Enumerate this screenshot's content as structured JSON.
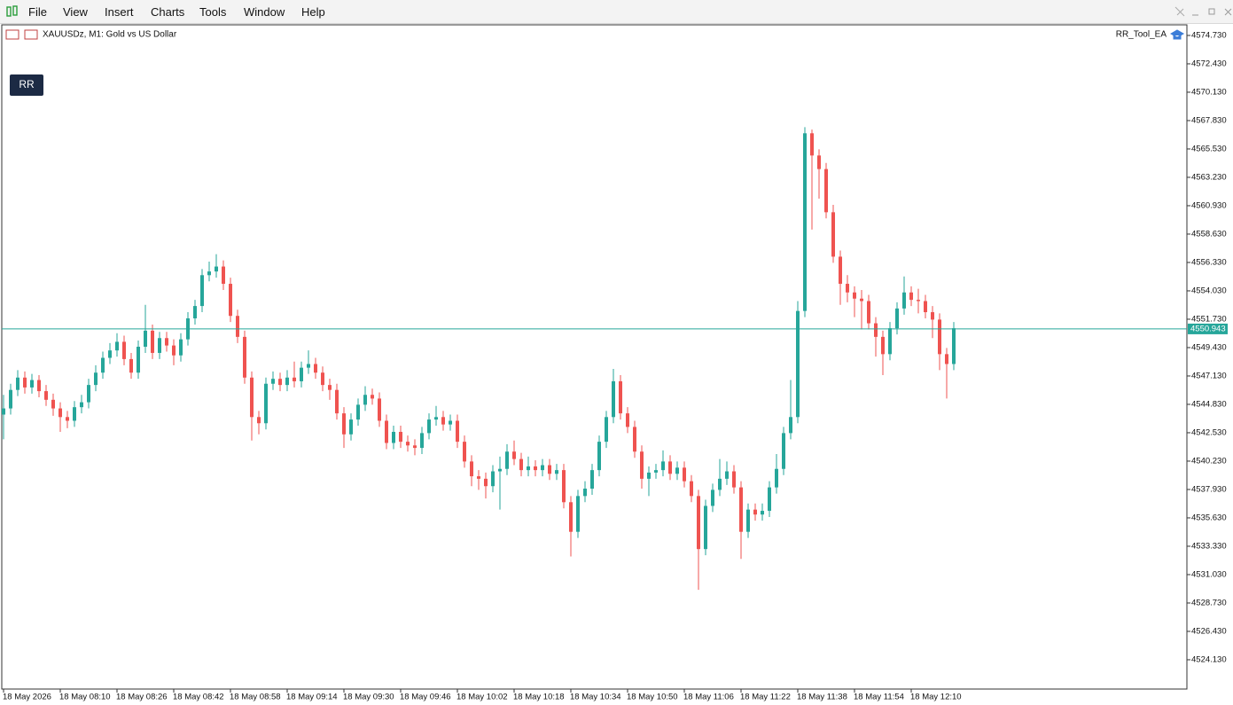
{
  "menu": {
    "items": [
      "File",
      "View",
      "Insert",
      "Charts",
      "Tools",
      "Window",
      "Help"
    ]
  },
  "chart_data": {
    "type": "candlestick",
    "title": "XAUUSDz, M1:  Gold vs US Dollar",
    "expert": "RR_Tool_EA",
    "button": "RR",
    "up_color": "#26a69a",
    "down_color": "#ef5350",
    "ylim": [
      4521.9,
      4575.59
    ],
    "yticks": [
      {
        "value": 4574.73,
        "label": "4574.730"
      },
      {
        "value": 4572.43,
        "label": "4572.430"
      },
      {
        "value": 4570.13,
        "label": "4570.130"
      },
      {
        "value": 4567.83,
        "label": "4567.830"
      },
      {
        "value": 4565.53,
        "label": "4565.530"
      },
      {
        "value": 4563.23,
        "label": "4563.230"
      },
      {
        "value": 4560.93,
        "label": "4560.930"
      },
      {
        "value": 4558.63,
        "label": "4558.630"
      },
      {
        "value": 4556.33,
        "label": "4556.330"
      },
      {
        "value": 4554.03,
        "label": "4554.030"
      },
      {
        "value": 4551.73,
        "label": "4551.730"
      },
      {
        "value": 4549.43,
        "label": "4549.430"
      },
      {
        "value": 4547.13,
        "label": "4547.130"
      },
      {
        "value": 4544.83,
        "label": "4544.830"
      },
      {
        "value": 4542.53,
        "label": "4542.530"
      },
      {
        "value": 4540.23,
        "label": "4540.230"
      },
      {
        "value": 4537.93,
        "label": "4537.930"
      },
      {
        "value": 4535.63,
        "label": "4535.630"
      },
      {
        "value": 4533.33,
        "label": "4533.330"
      },
      {
        "value": 4531.03,
        "label": "4531.030"
      },
      {
        "value": 4528.73,
        "label": "4528.730"
      },
      {
        "value": 4526.43,
        "label": "4526.430"
      },
      {
        "value": 4524.13,
        "label": "4524.130"
      }
    ],
    "current_price": 4550.943,
    "xtick_labels": [
      "18 May 2026",
      "18 May 08:10",
      "18 May 08:26",
      "18 May 08:42",
      "18 May 08:58",
      "18 May 09:14",
      "18 May 09:30",
      "18 May 09:46",
      "18 May 10:02",
      "18 May 10:18",
      "18 May 10:34",
      "18 May 10:50",
      "18 May 11:06",
      "18 May 11:22",
      "18 May 11:38",
      "18 May 11:54",
      "18 May 12:10"
    ],
    "open": [
      4544.0,
      4544.5,
      4546.0,
      4547.0,
      4546.2,
      4546.8,
      4545.9,
      4545.2,
      4544.5,
      4543.8,
      4543.5,
      4544.6,
      4545.0,
      4546.4,
      4547.4,
      4548.6,
      4549.2,
      4549.9,
      4548.5,
      4547.4,
      4549.5,
      4550.8,
      4549.0,
      4550.2,
      4549.6,
      4548.8,
      4550.1,
      4551.8,
      4552.8,
      4555.3,
      4555.6,
      4556.0,
      4554.6,
      4552.0,
      4550.3,
      4547.0,
      4543.8,
      4543.3,
      4546.5,
      4546.9,
      4546.4,
      4547.0,
      4546.7,
      4547.8,
      4548.1,
      4547.4,
      4546.4,
      4546.0,
      4544.1,
      4542.4,
      4543.6,
      4544.8,
      4545.6,
      4545.3,
      4543.5,
      4541.7,
      4542.6,
      4541.8,
      4541.5,
      4541.3,
      4542.5,
      4543.6,
      4543.8,
      4543.2,
      4543.5,
      4541.8,
      4540.2,
      4539.0,
      4538.8,
      4538.2,
      4539.4,
      4539.6,
      4541.0,
      4540.4,
      4539.5,
      4539.8,
      4539.5,
      4539.9,
      4539.2,
      4539.5,
      4536.9,
      4534.5,
      4537.4,
      4538.0,
      4539.5,
      4541.8,
      4543.8,
      4546.7,
      4544.1,
      4543.0,
      4541.0,
      4538.8,
      4539.3,
      4539.5,
      4540.2,
      4539.2,
      4539.7,
      4538.6,
      4537.4,
      4533.1,
      4536.6,
      4537.9,
      4538.8,
      4539.4,
      4538.1,
      4534.5,
      4536.3,
      4535.9,
      4536.2,
      4538.1,
      4539.6,
      4542.5,
      4543.8,
      4552.4,
      4566.8,
      4565.0,
      4563.9,
      4560.4,
      4556.8,
      4554.6,
      4553.9,
      4553.4,
      4553.2,
      4551.4,
      4550.3,
      4548.9,
      4551.0,
      4552.6,
      4553.9,
      4553.3,
      4553.2,
      4552.3,
      4551.7,
      4548.9,
      4548.1
    ],
    "high": [
      4545.6,
      4546.5,
      4547.6,
      4547.5,
      4547.3,
      4547.2,
      4546.4,
      4545.7,
      4545.0,
      4544.3,
      4545.1,
      4545.6,
      4546.9,
      4548.0,
      4549.1,
      4549.8,
      4550.6,
      4550.4,
      4549.0,
      4550.0,
      4552.9,
      4551.3,
      4550.7,
      4550.7,
      4550.1,
      4550.6,
      4552.3,
      4553.3,
      4555.8,
      4556.4,
      4557.0,
      4556.5,
      4555.1,
      4552.5,
      4550.8,
      4547.5,
      4544.3,
      4547.0,
      4547.5,
      4547.4,
      4547.6,
      4548.3,
      4548.3,
      4549.2,
      4548.6,
      4547.9,
      4546.9,
      4546.5,
      4544.6,
      4544.1,
      4545.3,
      4546.3,
      4546.1,
      4545.8,
      4544.0,
      4543.1,
      4543.1,
      4542.3,
      4542.0,
      4543.0,
      4544.1,
      4544.7,
      4544.3,
      4544.0,
      4544.0,
      4542.3,
      4540.7,
      4539.5,
      4539.3,
      4539.9,
      4540.6,
      4541.6,
      4541.9,
      4540.9,
      4540.6,
      4540.3,
      4540.4,
      4540.4,
      4540.0,
      4540.0,
      4537.4,
      4537.9,
      4538.6,
      4540.0,
      4542.3,
      4544.3,
      4547.7,
      4547.2,
      4544.6,
      4543.5,
      4541.5,
      4539.8,
      4540.0,
      4541.1,
      4540.7,
      4540.2,
      4540.2,
      4539.1,
      4537.9,
      4537.1,
      4538.4,
      4540.4,
      4540.2,
      4539.9,
      4538.6,
      4536.8,
      4536.8,
      4536.8,
      4538.6,
      4540.8,
      4543.0,
      4546.8,
      4553.2,
      4567.3,
      4567.1,
      4565.5,
      4564.4,
      4561.0,
      4557.3,
      4555.3,
      4554.4,
      4554.1,
      4553.7,
      4551.9,
      4550.8,
      4551.5,
      4553.1,
      4555.2,
      4554.4,
      4554.2,
      4553.7,
      4552.8,
      4552.2,
      4549.4,
      4551.5
    ],
    "low": [
      4542.0,
      4544.0,
      4545.5,
      4545.7,
      4545.7,
      4545.4,
      4544.7,
      4543.9,
      4542.6,
      4542.9,
      4543.0,
      4544.1,
      4544.5,
      4545.9,
      4546.9,
      4548.1,
      4548.7,
      4548.0,
      4546.9,
      4546.9,
      4549.0,
      4548.5,
      4548.5,
      4549.1,
      4548.0,
      4548.3,
      4549.6,
      4551.3,
      4552.3,
      4554.8,
      4555.1,
      4554.1,
      4551.5,
      4549.8,
      4546.5,
      4541.9,
      4542.4,
      4542.8,
      4546.0,
      4545.9,
      4545.9,
      4546.2,
      4546.2,
      4547.3,
      4546.9,
      4545.9,
      4545.2,
      4543.6,
      4541.3,
      4541.9,
      4543.1,
      4544.3,
      4544.8,
      4543.0,
      4541.2,
      4541.2,
      4541.3,
      4541.0,
      4540.7,
      4540.8,
      4542.0,
      4543.1,
      4542.7,
      4542.7,
      4541.3,
      4539.7,
      4538.2,
      4537.9,
      4537.2,
      4537.7,
      4536.3,
      4539.1,
      4539.9,
      4539.0,
      4539.0,
      4539.0,
      4539.0,
      4538.7,
      4538.7,
      4536.4,
      4532.5,
      4534.0,
      4536.9,
      4537.5,
      4539.0,
      4541.3,
      4543.3,
      4543.6,
      4542.5,
      4540.5,
      4538.0,
      4537.4,
      4538.8,
      4539.0,
      4538.7,
      4538.7,
      4538.1,
      4536.9,
      4529.8,
      4532.6,
      4536.1,
      4537.4,
      4538.3,
      4537.6,
      4532.3,
      4534.0,
      4535.4,
      4535.4,
      4535.7,
      4537.6,
      4539.1,
      4542.0,
      4543.3,
      4551.9,
      4559.0,
      4561.5,
      4559.9,
      4556.3,
      4552.9,
      4553.1,
      4551.9,
      4550.9,
      4550.9,
      4548.7,
      4547.2,
      4548.4,
      4550.5,
      4552.1,
      4552.8,
      4552.2,
      4551.8,
      4550.2,
      4547.6,
      4545.3,
      4547.6
    ],
    "close": [
      4544.5,
      4546.0,
      4547.0,
      4546.2,
      4546.8,
      4545.9,
      4545.2,
      4544.5,
      4543.8,
      4543.5,
      4544.6,
      4545.0,
      4546.4,
      4547.4,
      4548.6,
      4549.2,
      4549.9,
      4548.5,
      4547.4,
      4549.5,
      4550.8,
      4549.0,
      4550.2,
      4549.6,
      4548.8,
      4550.1,
      4551.8,
      4552.8,
      4555.3,
      4555.6,
      4556.0,
      4554.6,
      4552.0,
      4550.3,
      4547.0,
      4543.8,
      4543.3,
      4546.5,
      4546.9,
      4546.4,
      4547.0,
      4546.7,
      4547.8,
      4548.1,
      4547.4,
      4546.4,
      4546.0,
      4544.1,
      4542.4,
      4543.6,
      4544.8,
      4545.6,
      4545.3,
      4543.5,
      4541.7,
      4542.6,
      4541.8,
      4541.5,
      4541.3,
      4542.5,
      4543.6,
      4543.8,
      4543.2,
      4543.5,
      4541.8,
      4540.2,
      4539.0,
      4538.8,
      4538.2,
      4539.4,
      4539.6,
      4541.0,
      4540.4,
      4539.5,
      4539.8,
      4539.5,
      4539.9,
      4539.2,
      4539.5,
      4536.9,
      4534.5,
      4537.4,
      4538.0,
      4539.5,
      4541.8,
      4543.8,
      4546.7,
      4544.1,
      4543.0,
      4541.0,
      4538.8,
      4539.3,
      4539.5,
      4540.2,
      4539.2,
      4539.7,
      4538.6,
      4537.4,
      4533.1,
      4536.6,
      4537.9,
      4538.8,
      4539.4,
      4538.1,
      4534.5,
      4536.3,
      4535.9,
      4536.2,
      4538.1,
      4539.6,
      4542.5,
      4543.8,
      4552.4,
      4566.8,
      4565.0,
      4563.9,
      4560.4,
      4556.8,
      4554.6,
      4553.9,
      4553.4,
      4553.2,
      4551.4,
      4550.3,
      4548.9,
      4551.0,
      4552.6,
      4553.9,
      4553.3,
      4553.2,
      4552.3,
      4551.7,
      4548.9,
      4548.1,
      4551.0
    ]
  }
}
